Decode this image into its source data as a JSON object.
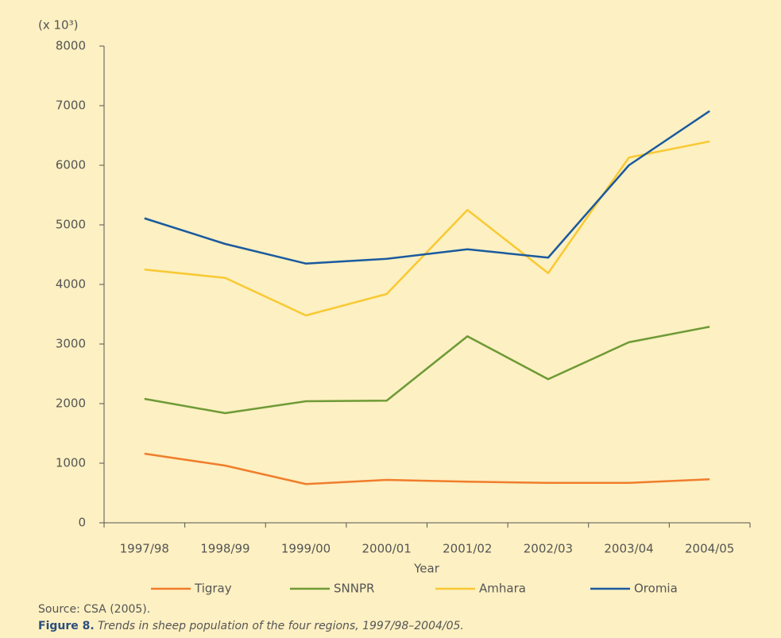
{
  "chart_data": {
    "type": "line",
    "y_unit": "(x 10³)",
    "x_label": "Year",
    "categories": [
      "1997/98",
      "1998/99",
      "1999/00",
      "2000/01",
      "2001/02",
      "2002/03",
      "2003/04",
      "2004/05"
    ],
    "series": [
      {
        "name": "Tigray",
        "color": "#f07d2c",
        "values": [
          1160,
          960,
          650,
          720,
          690,
          670,
          670,
          730
        ]
      },
      {
        "name": "SNNPR",
        "color": "#6e9a35",
        "values": [
          2080,
          1840,
          2040,
          2050,
          3130,
          2410,
          3030,
          3290
        ]
      },
      {
        "name": "Amhara",
        "color": "#f9c933",
        "values": [
          4250,
          4110,
          3480,
          3840,
          5250,
          4190,
          6130,
          6400
        ]
      },
      {
        "name": "Oromia",
        "color": "#1a5a9e",
        "values": [
          5110,
          4680,
          4350,
          4430,
          4590,
          4450,
          6000,
          6910
        ]
      }
    ],
    "ylim": [
      0,
      8000
    ],
    "yticks": [
      0,
      1000,
      2000,
      3000,
      4000,
      5000,
      6000,
      7000,
      8000
    ],
    "grid": false,
    "legend": "bottom",
    "source": "Source: CSA (2005).",
    "caption_label": "Figure 8.",
    "caption_text": "Trends in sheep population of the four regions, 1997/98–2004/05."
  }
}
